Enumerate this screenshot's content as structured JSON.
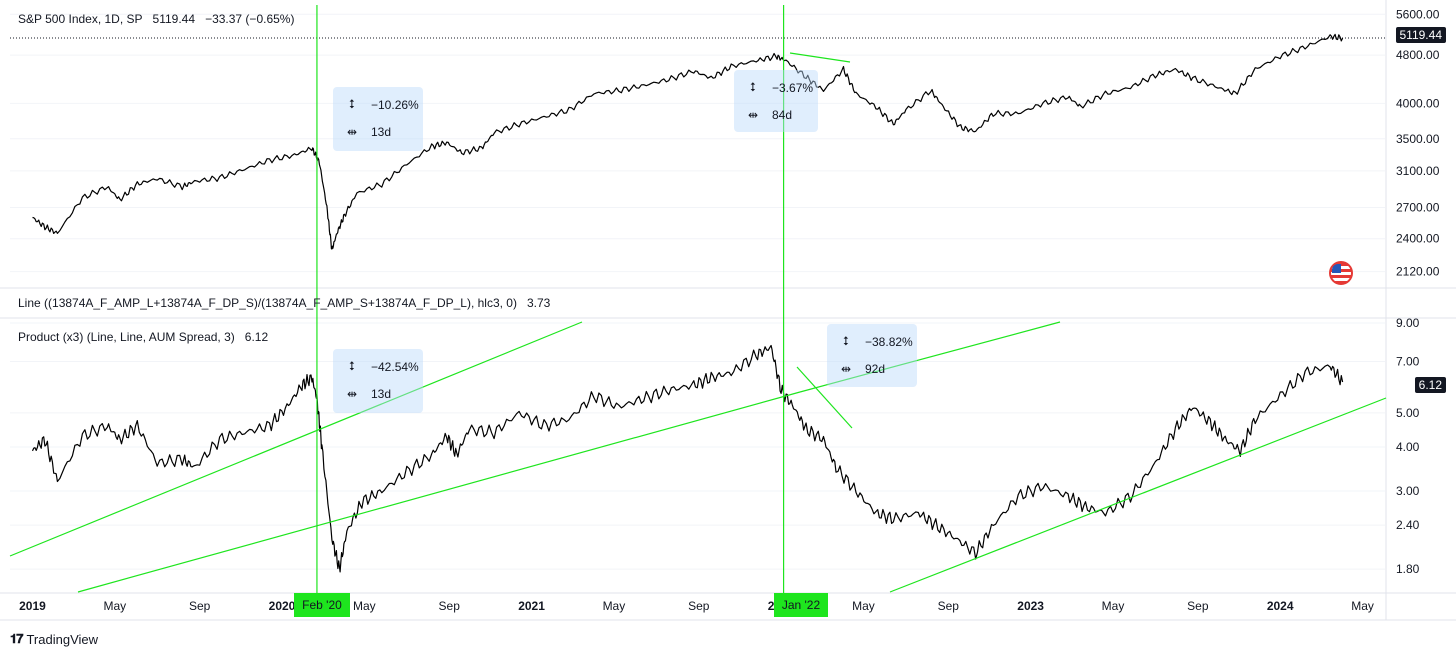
{
  "top_pane": {
    "legend": {
      "symbol": "S&P 500 Index, 1D, SP",
      "price": "5119.44",
      "change": "−33.37 (−0.65%)"
    },
    "last_price_tag": "5119.44",
    "measure_boxes": [
      {
        "pct": "−10.26%",
        "days": "13d"
      },
      {
        "pct": "−3.67%",
        "days": "84d"
      }
    ]
  },
  "bottom_pane": {
    "legend_line": {
      "text": "Line ((13874A_F_AMP_L+13874A_F_DP_S)/(13874A_F_AMP_S+13874A_F_DP_L), hlc3, 0)",
      "value": "3.73"
    },
    "legend_product": {
      "text": "Product (x3) (Line, Line, AUM Spread, 3)",
      "value": "6.12"
    },
    "last_value_tag": "6.12",
    "measure_boxes": [
      {
        "pct": "−42.54%",
        "days": "13d"
      },
      {
        "pct": "−38.82%",
        "days": "92d"
      }
    ]
  },
  "x_axis": {
    "date_tags": [
      "Feb '20",
      "Jan '22"
    ]
  },
  "branding": {
    "name": "TradingView"
  },
  "colors": {
    "series": "#000000",
    "trendline": "#1ee51e",
    "grid": "#f0f3fa",
    "accent": "#1ee51e"
  },
  "chart_data": [
    {
      "type": "line",
      "title": "S&P 500 Index, 1D, SP",
      "scale": "log",
      "ylim": [
        2000,
        5800
      ],
      "y_ticks": [
        "5600.00",
        "4800.00",
        "4000.00",
        "3500.00",
        "3100.00",
        "2700.00",
        "2400.00",
        "2120.00"
      ],
      "x_ticks": [
        "2019",
        "May",
        "Sep",
        "2020",
        "May",
        "Sep",
        "2021",
        "May",
        "Sep",
        "2022",
        "May",
        "Sep",
        "2023",
        "May",
        "Sep",
        "2024",
        "May"
      ],
      "series": [
        {
          "name": "S&P 500",
          "x": [
            2019.0,
            2019.05,
            2019.1,
            2019.2,
            2019.3,
            2019.35,
            2019.42,
            2019.5,
            2019.6,
            2019.65,
            2019.75,
            2019.85,
            2019.95,
            2020.05,
            2020.12,
            2020.15,
            2020.18,
            2020.2,
            2020.22,
            2020.25,
            2020.3,
            2020.4,
            2020.5,
            2020.6,
            2020.66,
            2020.72,
            2020.8,
            2020.85,
            2020.95,
            2021.05,
            2021.15,
            2021.25,
            2021.35,
            2021.45,
            2021.55,
            2021.65,
            2021.72,
            2021.8,
            2021.9,
            2021.98,
            2022.02,
            2022.1,
            2022.17,
            2022.25,
            2022.3,
            2022.38,
            2022.45,
            2022.5,
            2022.6,
            2022.65,
            2022.72,
            2022.78,
            2022.85,
            2022.95,
            2023.05,
            2023.15,
            2023.2,
            2023.3,
            2023.4,
            2023.5,
            2023.58,
            2023.65,
            2023.75,
            2023.82,
            2023.9,
            2024.0,
            2024.1,
            2024.2,
            2024.25
          ],
          "values": [
            2600,
            2510,
            2450,
            2800,
            2920,
            2780,
            2950,
            3010,
            2920,
            2980,
            3020,
            3120,
            3230,
            3290,
            3380,
            3200,
            2700,
            2300,
            2450,
            2620,
            2850,
            2950,
            3180,
            3400,
            3450,
            3320,
            3380,
            3580,
            3700,
            3800,
            3900,
            4150,
            4200,
            4280,
            4380,
            4520,
            4400,
            4600,
            4700,
            4780,
            4700,
            4420,
            4200,
            4550,
            4150,
            3950,
            3700,
            3900,
            4200,
            3950,
            3650,
            3600,
            3850,
            3850,
            4000,
            4100,
            3950,
            4150,
            4250,
            4450,
            4550,
            4400,
            4250,
            4150,
            4550,
            4780,
            4950,
            5150,
            5119.44
          ]
        }
      ],
      "annotations": [
        {
          "type": "measure",
          "pct": -10.26,
          "days": 13
        },
        {
          "type": "measure",
          "pct": -3.67,
          "days": 84
        }
      ]
    },
    {
      "type": "line",
      "title": "Product (x3) (Line, Line, AUM Spread, 3)",
      "scale": "log",
      "ylim": [
        1.55,
        9.3
      ],
      "y_ticks": [
        "9.00",
        "7.00",
        "5.00",
        "4.00",
        "3.00",
        "2.40",
        "1.80"
      ],
      "series": [
        {
          "name": "Product (x3)",
          "x": [
            2019.0,
            2019.05,
            2019.1,
            2019.2,
            2019.3,
            2019.35,
            2019.42,
            2019.5,
            2019.6,
            2019.65,
            2019.75,
            2019.85,
            2019.95,
            2020.02,
            2020.08,
            2020.12,
            2020.14,
            2020.16,
            2020.2,
            2020.23,
            2020.26,
            2020.32,
            2020.4,
            2020.5,
            2020.6,
            2020.66,
            2020.7,
            2020.75,
            2020.85,
            2020.95,
            2021.05,
            2021.15,
            2021.25,
            2021.35,
            2021.45,
            2021.55,
            2021.65,
            2021.72,
            2021.8,
            2021.9,
            2021.96,
            2022.0,
            2022.05,
            2022.1,
            2022.17,
            2022.22,
            2022.3,
            2022.38,
            2022.45,
            2022.55,
            2022.62,
            2022.7,
            2022.78,
            2022.85,
            2022.95,
            2023.05,
            2023.15,
            2023.22,
            2023.3,
            2023.4,
            2023.5,
            2023.58,
            2023.65,
            2023.72,
            2023.78,
            2023.84,
            2023.9,
            2024.0,
            2024.1,
            2024.2,
            2024.25
          ],
          "values": [
            3.9,
            4.2,
            3.2,
            4.3,
            4.6,
            4.2,
            4.6,
            3.6,
            3.7,
            3.5,
            4.2,
            4.4,
            4.6,
            5.2,
            6.0,
            6.3,
            5.5,
            4.0,
            2.2,
            1.8,
            2.3,
            2.8,
            3.0,
            3.4,
            3.8,
            4.3,
            3.8,
            4.5,
            4.4,
            5.0,
            4.6,
            4.8,
            5.6,
            5.2,
            5.5,
            5.8,
            6.0,
            6.3,
            6.5,
            7.3,
            7.7,
            5.8,
            5.2,
            4.5,
            4.2,
            3.5,
            3.0,
            2.6,
            2.5,
            2.6,
            2.4,
            2.2,
            2.0,
            2.4,
            2.9,
            3.1,
            2.9,
            2.7,
            2.6,
            2.9,
            3.6,
            4.5,
            5.2,
            4.7,
            4.2,
            3.9,
            4.8,
            5.6,
            6.5,
            6.8,
            6.12
          ]
        }
      ],
      "annotations": [
        {
          "type": "measure",
          "pct": -42.54,
          "days": 13
        },
        {
          "type": "measure",
          "pct": -38.82,
          "days": 92
        }
      ]
    }
  ]
}
